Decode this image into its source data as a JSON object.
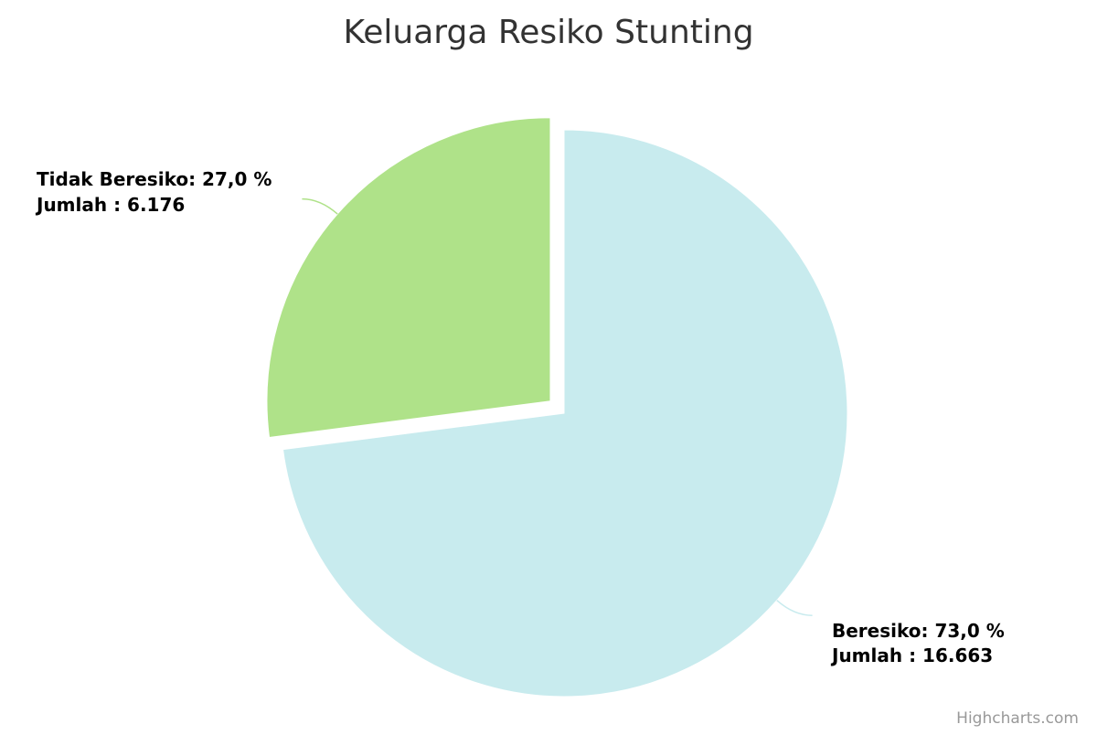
{
  "chart_data": {
    "type": "pie",
    "title": "Keluarga Resiko Stunting",
    "categories": [
      "Beresiko",
      "Tidak Beresiko"
    ],
    "values": [
      16663,
      6176
    ],
    "percentages": [
      73.0,
      27.0
    ],
    "colors": [
      "#c8ebee",
      "#afe289"
    ],
    "labels": [
      {
        "line1": "Beresiko: 73,0 %",
        "line2": "Jumlah : 16.663"
      },
      {
        "line1": "Tidak Beresiko: 27,0 %",
        "line2": "Jumlah : 6.176"
      }
    ],
    "exploded": "Tidak Beresiko"
  },
  "credits": "Highcharts.com"
}
